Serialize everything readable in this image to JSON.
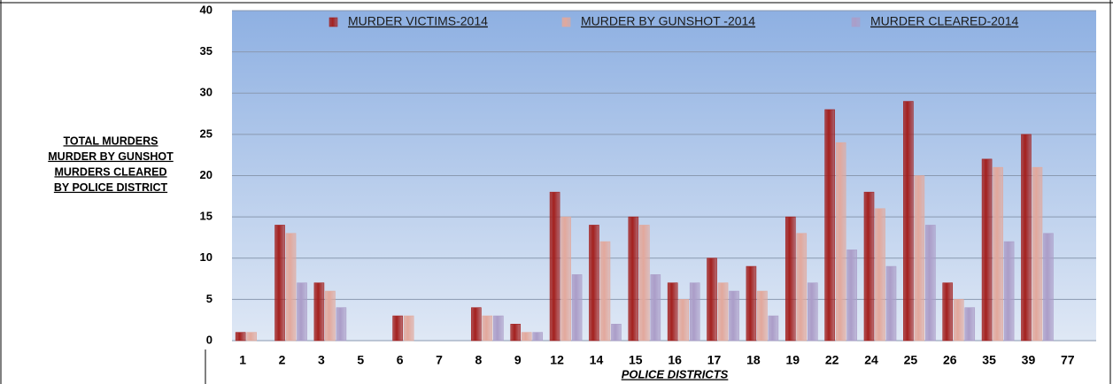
{
  "chart_data": {
    "type": "bar",
    "ylabel": [
      "TOTAL MURDERS",
      "MURDER BY GUNSHOT",
      "MURDERS CLEARED",
      "BY POLICE DISTRICT"
    ],
    "xlabel": "POLICE DISTRICTS",
    "categories": [
      "1",
      "2",
      "3",
      "5",
      "6",
      "7",
      "8",
      "9",
      "12",
      "14",
      "15",
      "16",
      "17",
      "18",
      "19",
      "22",
      "24",
      "25",
      "26",
      "35",
      "39",
      "77"
    ],
    "series": [
      {
        "name": "MURDER VICTIMS-2014",
        "color": "#a3201e",
        "values": [
          1,
          14,
          7,
          0,
          3,
          0,
          4,
          2,
          18,
          14,
          15,
          7,
          10,
          9,
          15,
          28,
          18,
          29,
          7,
          22,
          25,
          0
        ]
      },
      {
        "name": "MURDER BY GUNSHOT -2014",
        "color": "#e2a89c",
        "values": [
          1,
          13,
          6,
          0,
          3,
          0,
          3,
          1,
          15,
          12,
          14,
          5,
          7,
          6,
          13,
          24,
          16,
          20,
          5,
          21,
          21,
          0
        ]
      },
      {
        "name": "MURDER CLEARED-2014",
        "color": "#ab9dc8",
        "values": [
          0,
          7,
          4,
          0,
          0,
          0,
          3,
          1,
          8,
          2,
          8,
          7,
          6,
          3,
          7,
          11,
          9,
          14,
          4,
          12,
          13,
          0
        ]
      }
    ],
    "ylim": [
      0,
      40
    ],
    "yticks": [
      0,
      5,
      10,
      15,
      20,
      25,
      30,
      35,
      40
    ],
    "grid": true,
    "legend": "top"
  }
}
